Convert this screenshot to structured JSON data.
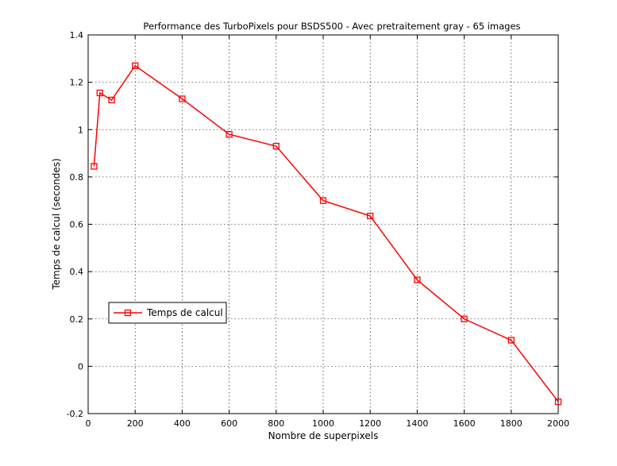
{
  "chart_data": {
    "type": "line",
    "title": "Performance des TurboPixels pour BSDS500 - Avec pretraitement gray - 65 images",
    "xlabel": "Nombre de superpixels",
    "ylabel": "Temps de calcul (secondes)",
    "xlim": [
      0,
      2000
    ],
    "ylim": [
      -0.2,
      1.4
    ],
    "xticks": [
      0,
      200,
      400,
      600,
      800,
      1000,
      1200,
      1400,
      1600,
      1800,
      2000
    ],
    "yticks": [
      -0.2,
      0,
      0.2,
      0.4,
      0.6,
      0.8,
      1,
      1.2,
      1.4
    ],
    "ytick_labels": [
      "-0.2",
      "0",
      "0.2",
      "0.4",
      "0.6",
      "0.8",
      "1",
      "1.2",
      "1.4"
    ],
    "grid": true,
    "legend_position": "lower-left",
    "series": [
      {
        "name": "Temps de calcul",
        "color": "#ff0000",
        "marker": "square",
        "x": [
          25,
          50,
          100,
          200,
          400,
          600,
          800,
          1000,
          1200,
          1400,
          1600,
          1800,
          2000
        ],
        "y": [
          0.845,
          1.155,
          1.125,
          1.27,
          1.13,
          0.98,
          0.93,
          0.7,
          0.635,
          0.365,
          0.2,
          0.11,
          -0.15
        ]
      }
    ]
  }
}
